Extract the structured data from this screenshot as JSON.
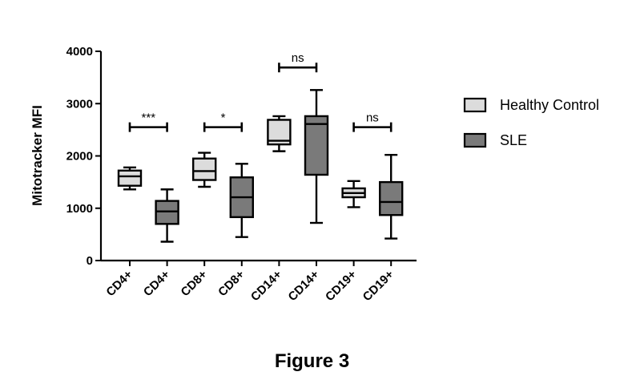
{
  "chart_data": {
    "type": "box",
    "ylabel": "Mitotracker MFI",
    "ylim": [
      0,
      4000
    ],
    "yticks": [
      0,
      1000,
      2000,
      3000,
      4000
    ],
    "categories": [
      "CD4+",
      "CD4+",
      "CD8+",
      "CD8+",
      "CD14+",
      "CD14+",
      "CD19+",
      "CD19+"
    ],
    "groups": [
      "Healthy Control",
      "SLE",
      "Healthy Control",
      "SLE",
      "Healthy Control",
      "SLE",
      "Healthy Control",
      "SLE"
    ],
    "series": [
      {
        "name": "Healthy Control",
        "color": "#dcdcdc"
      },
      {
        "name": "SLE",
        "color": "#7a7a7a"
      }
    ],
    "boxes": [
      {
        "min": 1360,
        "q1": 1430,
        "median": 1610,
        "q3": 1720,
        "max": 1780
      },
      {
        "min": 360,
        "q1": 700,
        "median": 940,
        "q3": 1140,
        "max": 1360
      },
      {
        "min": 1410,
        "q1": 1540,
        "median": 1710,
        "q3": 1950,
        "max": 2060
      },
      {
        "min": 450,
        "q1": 830,
        "median": 1210,
        "q3": 1590,
        "max": 1850
      },
      {
        "min": 2090,
        "q1": 2220,
        "median": 2290,
        "q3": 2690,
        "max": 2760
      },
      {
        "min": 720,
        "q1": 1640,
        "median": 2610,
        "q3": 2760,
        "max": 3260
      },
      {
        "min": 1020,
        "q1": 1210,
        "median": 1290,
        "q3": 1380,
        "max": 1520
      },
      {
        "min": 420,
        "q1": 870,
        "median": 1120,
        "q3": 1500,
        "max": 2020
      }
    ],
    "significance": [
      {
        "pair": [
          0,
          1
        ],
        "y": 2550,
        "label": "***"
      },
      {
        "pair": [
          2,
          3
        ],
        "y": 2550,
        "label": "*"
      },
      {
        "pair": [
          4,
          5
        ],
        "y": 3690,
        "label": "ns"
      },
      {
        "pair": [
          6,
          7
        ],
        "y": 2550,
        "label": "ns"
      }
    ],
    "legend_position": "right"
  },
  "caption": "Figure 3"
}
